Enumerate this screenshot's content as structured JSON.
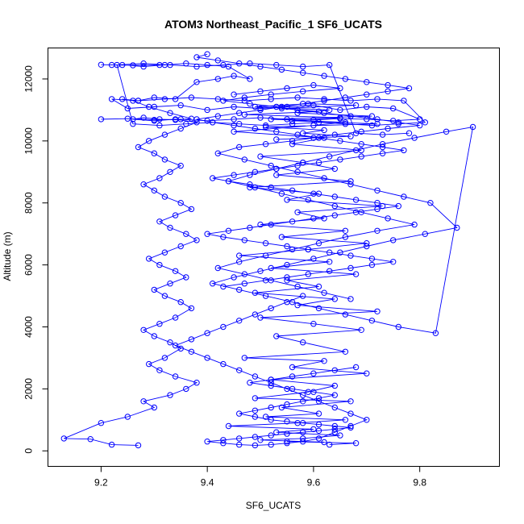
{
  "chart_data": {
    "type": "line",
    "title": "ATOM3 Northeast_Pacific_1 SF6_UCATS",
    "xlabel": "SF6_UCATS",
    "ylabel": "Altitude (m)",
    "xlim": [
      9.1,
      9.95
    ],
    "ylim": [
      -500,
      13000
    ],
    "xticks": [
      9.2,
      9.4,
      9.6,
      9.8
    ],
    "xtick_labels": [
      "9.2",
      "9.4",
      "9.6",
      "9.8"
    ],
    "yticks": [
      0,
      2000,
      4000,
      6000,
      8000,
      10000,
      12000
    ],
    "ytick_labels": [
      "0",
      "2000",
      "4000",
      "6000",
      "8000",
      "10000",
      "12000"
    ],
    "grid": false,
    "legend": "none",
    "series_color": "#0000ff",
    "marker": "open-circle",
    "series": [
      {
        "x": [
          9.63,
          9.68,
          9.55,
          9.62,
          9.5,
          9.58,
          9.65,
          9.53,
          9.6,
          9.44,
          9.57,
          9.66,
          9.51,
          9.61,
          9.54,
          9.67,
          9.49,
          9.59,
          9.64,
          9.52,
          9.7,
          9.56,
          9.62,
          9.47,
          9.66,
          9.58,
          9.53,
          9.69,
          9.6,
          9.5,
          9.72,
          9.57,
          9.64,
          9.49,
          9.61,
          9.55,
          9.68,
          9.52,
          9.63,
          9.46,
          9.59,
          9.7,
          9.54,
          9.66,
          9.5,
          9.62,
          9.57,
          9.73,
          9.55,
          9.61,
          9.48,
          9.67,
          9.53,
          9.64,
          9.58,
          9.5,
          9.69,
          9.56,
          9.62,
          9.45,
          9.6,
          9.66,
          9.52,
          9.71,
          9.57,
          9.63,
          9.49,
          9.59,
          9.68,
          9.54,
          9.61,
          9.47,
          9.65,
          9.56,
          9.72,
          9.51,
          9.62,
          9.58,
          9.67,
          9.53
        ],
        "y": [
          200,
          250,
          300,
          280,
          350,
          400,
          500,
          600,
          700,
          800,
          900,
          1000,
          1100,
          1200,
          1400,
          1600,
          1700,
          1900,
          2100,
          2300,
          2500,
          2700,
          2900,
          3000,
          3200,
          3500,
          3700,
          3900,
          4100,
          4300,
          4500,
          4700,
          4900,
          5100,
          5300,
          5500,
          5700,
          5900,
          6100,
          6300,
          6500,
          6700,
          6900,
          7100,
          7300,
          7500,
          7700,
          7900,
          8100,
          8300,
          8500,
          8700,
          8900,
          9100,
          9300,
          9500,
          9700,
          9900,
          10100,
          10300,
          10500,
          10600,
          10700,
          10800,
          10900,
          11000,
          11100,
          11200,
          11150,
          11050,
          10950,
          10850,
          10750,
          10650,
          10550,
          10450,
          10350,
          10250,
          10150,
          10050
        ]
      },
      {
        "x": [
          9.27,
          9.22,
          9.18,
          9.13,
          9.2,
          9.25,
          9.3,
          9.28,
          9.33,
          9.36,
          9.38,
          9.34,
          9.31,
          9.29,
          9.32,
          9.35,
          9.33,
          9.3,
          9.28,
          9.31,
          9.34,
          9.37,
          9.35,
          9.32,
          9.3,
          9.33,
          9.36,
          9.34,
          9.31,
          9.29,
          9.32,
          9.35,
          9.38,
          9.36,
          9.33,
          9.31,
          9.34,
          9.37,
          9.35,
          9.32,
          9.3,
          9.28,
          9.31,
          9.33,
          9.35,
          9.32,
          9.3,
          9.27,
          9.29,
          9.32,
          9.35,
          9.38,
          9.34,
          9.3,
          9.26,
          9.28,
          9.31,
          9.34,
          9.37,
          9.33,
          9.29,
          9.26,
          9.24,
          9.27,
          9.3,
          9.34,
          9.38,
          9.42,
          9.45,
          9.48,
          9.44,
          9.4,
          9.36,
          9.32,
          9.28,
          9.24,
          9.22,
          9.2,
          9.26,
          9.31
        ],
        "y": [
          180,
          200,
          380,
          400,
          900,
          1100,
          1400,
          1600,
          1800,
          2000,
          2200,
          2400,
          2600,
          2800,
          3000,
          3300,
          3500,
          3700,
          3900,
          4100,
          4300,
          4600,
          4800,
          5000,
          5200,
          5400,
          5600,
          5800,
          6000,
          6200,
          6400,
          6600,
          6800,
          7000,
          7200,
          7400,
          7600,
          7800,
          8000,
          8200,
          8400,
          8600,
          8800,
          9000,
          9200,
          9400,
          9600,
          9800,
          10000,
          10200,
          10400,
          10600,
          10700,
          10650,
          10700,
          10750,
          10700,
          10680,
          10720,
          10900,
          11100,
          11300,
          11350,
          11300,
          11400,
          11350,
          11900,
          12000,
          12100,
          12000,
          12400,
          12450,
          12500,
          12450,
          12400,
          12450,
          12450,
          12460,
          12440,
          12450
        ]
      },
      {
        "x": [
          9.45,
          9.5,
          9.55,
          9.6,
          9.65,
          9.58,
          9.52,
          9.47,
          9.43,
          9.48,
          9.53,
          9.57,
          9.62,
          9.67,
          9.72,
          9.76,
          9.8,
          9.74,
          9.69,
          9.64,
          9.6,
          9.56,
          9.51,
          9.46,
          9.42,
          9.47,
          9.52,
          9.57,
          9.62,
          9.67,
          9.72,
          9.77,
          9.82,
          9.87,
          9.81,
          9.75,
          9.7,
          9.65,
          9.6,
          9.55,
          9.5,
          9.45,
          9.41,
          9.46,
          9.51,
          9.56,
          9.61,
          9.66,
          9.71,
          9.76,
          9.83,
          9.9,
          9.85,
          9.79,
          9.73,
          9.68,
          9.63,
          9.58,
          9.53,
          9.48,
          9.44,
          9.49,
          9.54,
          9.59,
          9.64,
          9.69,
          9.74,
          9.79,
          9.72,
          9.66,
          9.61,
          9.56,
          9.51,
          9.46,
          9.42,
          9.47,
          9.52,
          9.57,
          9.62,
          9.67
        ],
        "y": [
          11500,
          11600,
          11700,
          11800,
          11700,
          11600,
          11500,
          11400,
          11300,
          11200,
          11100,
          11000,
          10900,
          10800,
          10700,
          10600,
          10500,
          10400,
          10300,
          10200,
          10100,
          10000,
          9900,
          9800,
          9600,
          9400,
          9200,
          9000,
          8800,
          8600,
          8400,
          8200,
          8000,
          7200,
          7000,
          6800,
          6600,
          6400,
          6200,
          6000,
          5800,
          5600,
          5400,
          5200,
          5000,
          4800,
          4600,
          4400,
          4200,
          4000,
          3800,
          10450,
          10300,
          10100,
          9900,
          9700,
          9500,
          9300,
          9100,
          8900,
          8700,
          8500,
          8300,
          8100,
          7900,
          7700,
          7500,
          7300,
          7100,
          6900,
          6700,
          6500,
          6300,
          6100,
          5900,
          5700,
          5500,
          5300,
          5100,
          4900
        ]
      },
      {
        "x": [
          9.4,
          9.38,
          9.42,
          9.46,
          9.5,
          9.54,
          9.58,
          9.62,
          9.66,
          9.7,
          9.74,
          9.78,
          9.74,
          9.7,
          9.66,
          9.62,
          9.58,
          9.54,
          9.5,
          9.46,
          9.42,
          9.38,
          9.41,
          9.45,
          9.49,
          9.53,
          9.57,
          9.61,
          9.65,
          9.69,
          9.73,
          9.77,
          9.73,
          9.69,
          9.65,
          9.61,
          9.57,
          9.53,
          9.49,
          9.45,
          9.41,
          9.44,
          9.48,
          9.52,
          9.56,
          9.6,
          9.64,
          9.68,
          9.72,
          9.76,
          9.72,
          9.68,
          9.64,
          9.6,
          9.56,
          9.52,
          9.48,
          9.44,
          9.4,
          9.43,
          9.47,
          9.51,
          9.55,
          9.59,
          9.63,
          9.67,
          9.71,
          9.75,
          9.71,
          9.67,
          9.63,
          9.59,
          9.55,
          9.51,
          9.47,
          9.43
        ],
        "y": [
          12800,
          12700,
          12600,
          12500,
          12400,
          12300,
          12200,
          12100,
          12000,
          11900,
          11800,
          11700,
          11600,
          11500,
          11400,
          11300,
          11200,
          11100,
          11000,
          10900,
          10800,
          10700,
          10600,
          10500,
          10400,
          10300,
          10200,
          10100,
          10000,
          9900,
          9800,
          9700,
          9600,
          9500,
          9400,
          9300,
          9200,
          9100,
          9000,
          8900,
          8800,
          8700,
          8600,
          8500,
          8400,
          8300,
          8200,
          8100,
          8000,
          7900,
          7800,
          7700,
          7600,
          7500,
          7400,
          7300,
          7200,
          7100,
          7000,
          6900,
          6800,
          6700,
          6600,
          6500,
          6400,
          6300,
          6200,
          6100,
          6000,
          5900,
          5800,
          5700,
          5600,
          5500,
          5400,
          5300
        ]
      },
      {
        "x": [
          9.58,
          9.55,
          9.52,
          9.49,
          9.46,
          9.43,
          9.4,
          9.37,
          9.34,
          9.37,
          9.4,
          9.43,
          9.46,
          9.49,
          9.52,
          9.55,
          9.58,
          9.61,
          9.64,
          9.67,
          9.7,
          9.67,
          9.64,
          9.61,
          9.58,
          9.55,
          9.52,
          9.49,
          9.46,
          9.43,
          9.4,
          9.43,
          9.46,
          9.49,
          9.52,
          9.55,
          9.58,
          9.61,
          9.64,
          9.67,
          9.64,
          9.61,
          9.58,
          9.55,
          9.52,
          9.49,
          9.46,
          9.49,
          9.52,
          9.55,
          9.58,
          9.61,
          9.64,
          9.6,
          9.56,
          9.52,
          9.48,
          9.52,
          9.56,
          9.6,
          9.64,
          9.68
        ],
        "y": [
          5000,
          4800,
          4600,
          4400,
          4200,
          4000,
          3800,
          3600,
          3400,
          3200,
          3000,
          2800,
          2600,
          2400,
          2200,
          2000,
          1800,
          1600,
          1400,
          1200,
          1000,
          800,
          600,
          400,
          300,
          250,
          200,
          180,
          200,
          250,
          300,
          350,
          400,
          450,
          500,
          550,
          600,
          650,
          700,
          750,
          800,
          850,
          900,
          950,
          1000,
          1100,
          1200,
          1300,
          1400,
          1500,
          1600,
          1700,
          1800,
          1900,
          2000,
          2100,
          2200,
          2300,
          2400,
          2500,
          2600,
          2700
        ]
      },
      {
        "x": [
          9.2,
          9.25,
          9.3,
          9.35,
          9.4,
          9.45,
          9.5,
          9.55,
          9.6,
          9.65,
          9.7,
          9.75,
          9.8,
          9.75,
          9.7,
          9.65,
          9.6,
          9.55,
          9.5,
          9.45,
          9.4,
          9.35,
          9.3,
          9.25,
          9.22,
          9.27,
          9.32,
          9.37,
          9.42,
          9.47,
          9.52,
          9.57,
          9.62,
          9.67,
          9.72,
          9.77,
          9.81,
          9.76,
          9.71,
          9.66,
          9.61,
          9.56,
          9.51,
          9.46,
          9.41,
          9.36,
          9.31,
          9.26,
          9.23,
          9.28,
          9.33,
          9.38,
          9.43,
          9.48,
          9.53,
          9.58,
          9.63,
          9.68,
          9.73,
          9.78
        ],
        "y": [
          10700,
          10720,
          10680,
          10700,
          10650,
          10700,
          10750,
          10700,
          10680,
          10720,
          10700,
          10650,
          10700,
          11050,
          11100,
          11000,
          11150,
          11100,
          11050,
          11100,
          11000,
          11150,
          11100,
          11050,
          11350,
          11300,
          11350,
          11400,
          11350,
          11300,
          11350,
          11400,
          11350,
          11300,
          11350,
          11300,
          10600,
          10550,
          10500,
          10550,
          10600,
          10550,
          10500,
          10550,
          10600,
          10550,
          10500,
          10550,
          12450,
          12500,
          12450,
          12400,
          12450,
          12500,
          12450,
          12400,
          12450,
          10250,
          10200,
          10250
        ]
      }
    ]
  }
}
